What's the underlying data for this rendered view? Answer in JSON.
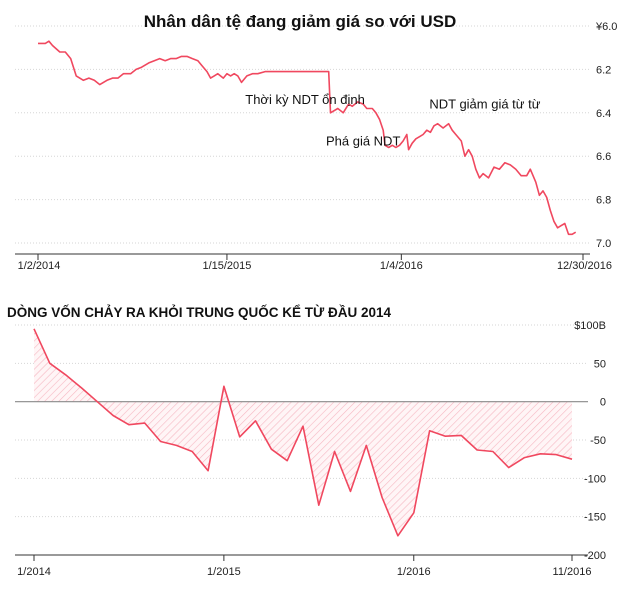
{
  "colors": {
    "line": "#f0485f",
    "grid": "#d6d6d6",
    "zero": "#8a8a8a",
    "fill": "#f9c6cf",
    "axis": "#333333"
  },
  "chart_data": [
    {
      "type": "line",
      "title": "Nhân dân tệ đang giảm giá so với USD",
      "y_inverted": true,
      "ylim": [
        6.0,
        7.0
      ],
      "y_ticks": [
        "¥6.0",
        "6.2",
        "6.4",
        "6.6",
        "6.8",
        "7.0"
      ],
      "y_tick_values": [
        6.0,
        6.2,
        6.4,
        6.6,
        6.8,
        7.0
      ],
      "x_ticks": [
        {
          "label": "1/2/2014",
          "t": 0
        },
        {
          "label": "1/15/2015",
          "t": 1.04
        },
        {
          "label": "1/4/2016",
          "t": 2.0
        },
        {
          "label": "12/30/2016",
          "t": 3.0
        }
      ],
      "annotations": [
        {
          "text": "Thời kỳ NDT ổn định",
          "t": 1.47,
          "y": 6.36
        },
        {
          "text": "Phá giá NDT",
          "t": 1.79,
          "y": 6.55
        },
        {
          "text": "NDT giảm giá từ từ",
          "t": 2.46,
          "y": 6.38
        }
      ],
      "series": [
        {
          "points": [
            [
              0.0,
              6.08
            ],
            [
              0.04,
              6.08
            ],
            [
              0.06,
              6.07
            ],
            [
              0.08,
              6.09
            ],
            [
              0.12,
              6.12
            ],
            [
              0.15,
              6.12
            ],
            [
              0.18,
              6.15
            ],
            [
              0.21,
              6.23
            ],
            [
              0.25,
              6.25
            ],
            [
              0.28,
              6.24
            ],
            [
              0.31,
              6.25
            ],
            [
              0.34,
              6.27
            ],
            [
              0.36,
              6.26
            ],
            [
              0.38,
              6.25
            ],
            [
              0.41,
              6.24
            ],
            [
              0.44,
              6.24
            ],
            [
              0.47,
              6.22
            ],
            [
              0.51,
              6.22
            ],
            [
              0.54,
              6.2
            ],
            [
              0.57,
              6.19
            ],
            [
              0.61,
              6.17
            ],
            [
              0.64,
              6.16
            ],
            [
              0.67,
              6.15
            ],
            [
              0.7,
              6.16
            ],
            [
              0.73,
              6.15
            ],
            [
              0.76,
              6.15
            ],
            [
              0.79,
              6.14
            ],
            [
              0.82,
              6.14
            ],
            [
              0.85,
              6.15
            ],
            [
              0.88,
              6.16
            ],
            [
              0.9,
              6.18
            ],
            [
              0.93,
              6.21
            ],
            [
              0.95,
              6.24
            ],
            [
              0.97,
              6.23
            ],
            [
              0.99,
              6.22
            ],
            [
              1.02,
              6.24
            ],
            [
              1.04,
              6.22
            ],
            [
              1.06,
              6.23
            ],
            [
              1.08,
              6.22
            ],
            [
              1.1,
              6.23
            ],
            [
              1.12,
              6.26
            ],
            [
              1.15,
              6.23
            ],
            [
              1.18,
              6.22
            ],
            [
              1.21,
              6.22
            ],
            [
              1.25,
              6.21
            ],
            [
              1.3,
              6.21
            ],
            [
              1.35,
              6.21
            ],
            [
              1.4,
              6.21
            ],
            [
              1.45,
              6.21
            ],
            [
              1.5,
              6.21
            ],
            [
              1.55,
              6.21
            ],
            [
              1.6,
              6.21
            ],
            [
              1.61,
              6.4
            ],
            [
              1.65,
              6.38
            ],
            [
              1.68,
              6.4
            ],
            [
              1.71,
              6.36
            ],
            [
              1.73,
              6.37
            ],
            [
              1.76,
              6.35
            ],
            [
              1.79,
              6.36
            ],
            [
              1.81,
              6.38
            ],
            [
              1.84,
              6.38
            ],
            [
              1.86,
              6.4
            ],
            [
              1.88,
              6.43
            ],
            [
              1.9,
              6.48
            ],
            [
              1.91,
              6.55
            ],
            [
              1.93,
              6.56
            ],
            [
              1.95,
              6.55
            ],
            [
              1.97,
              6.56
            ],
            [
              1.99,
              6.55
            ],
            [
              2.01,
              6.53
            ],
            [
              2.03,
              6.5
            ],
            [
              2.04,
              6.57
            ],
            [
              2.06,
              6.54
            ],
            [
              2.08,
              6.52
            ],
            [
              2.1,
              6.51
            ],
            [
              2.12,
              6.5
            ],
            [
              2.14,
              6.48
            ],
            [
              2.16,
              6.49
            ],
            [
              2.18,
              6.46
            ],
            [
              2.2,
              6.45
            ],
            [
              2.23,
              6.47
            ],
            [
              2.26,
              6.45
            ],
            [
              2.28,
              6.48
            ],
            [
              2.3,
              6.5
            ],
            [
              2.33,
              6.53
            ],
            [
              2.35,
              6.6
            ],
            [
              2.37,
              6.57
            ],
            [
              2.39,
              6.6
            ],
            [
              2.41,
              6.66
            ],
            [
              2.43,
              6.7
            ],
            [
              2.45,
              6.68
            ],
            [
              2.48,
              6.7
            ],
            [
              2.51,
              6.65
            ],
            [
              2.54,
              6.66
            ],
            [
              2.57,
              6.63
            ],
            [
              2.6,
              6.64
            ],
            [
              2.63,
              6.66
            ],
            [
              2.66,
              6.69
            ],
            [
              2.69,
              6.69
            ],
            [
              2.71,
              6.66
            ],
            [
              2.74,
              6.72
            ],
            [
              2.76,
              6.78
            ],
            [
              2.78,
              6.76
            ],
            [
              2.8,
              6.79
            ],
            [
              2.82,
              6.85
            ],
            [
              2.84,
              6.9
            ],
            [
              2.86,
              6.93
            ],
            [
              2.88,
              6.92
            ],
            [
              2.9,
              6.91
            ],
            [
              2.92,
              6.96
            ],
            [
              2.94,
              6.96
            ],
            [
              2.96,
              6.95
            ]
          ]
        }
      ]
    },
    {
      "type": "area",
      "title": "DÒNG VỐN CHẢY RA KHỎI TRUNG QUỐC KỂ TỪ ĐẦU 2014",
      "ylim": [
        -200,
        100
      ],
      "y_ticks": [
        "$100B",
        "50",
        "0",
        "-50",
        "-100",
        "-150",
        "-200"
      ],
      "y_tick_values": [
        100,
        50,
        0,
        -50,
        -100,
        -150,
        -200
      ],
      "x_ticks": [
        {
          "label": "1/2014",
          "m": 0
        },
        {
          "label": "1/2015",
          "m": 12
        },
        {
          "label": "1/2016",
          "m": 24
        },
        {
          "label": "11/2016",
          "m": 34
        }
      ],
      "series": [
        {
          "points": [
            [
              0,
              95
            ],
            [
              1,
              50
            ],
            [
              2,
              35
            ],
            [
              3,
              18
            ],
            [
              4,
              0
            ],
            [
              5,
              -18
            ],
            [
              6,
              -30
            ],
            [
              7,
              -28
            ],
            [
              8,
              -52
            ],
            [
              9,
              -57
            ],
            [
              10,
              -65
            ],
            [
              11,
              -90
            ],
            [
              12,
              20
            ],
            [
              13,
              -46
            ],
            [
              14,
              -25
            ],
            [
              15,
              -62
            ],
            [
              16,
              -77
            ],
            [
              17,
              -32
            ],
            [
              18,
              -135
            ],
            [
              19,
              -65
            ],
            [
              20,
              -117
            ],
            [
              21,
              -57
            ],
            [
              22,
              -125
            ],
            [
              23,
              -175
            ],
            [
              24,
              -145
            ],
            [
              25,
              -38
            ],
            [
              26,
              -45
            ],
            [
              27,
              -44
            ],
            [
              28,
              -63
            ],
            [
              29,
              -65
            ],
            [
              30,
              -86
            ],
            [
              31,
              -73
            ],
            [
              32,
              -68
            ],
            [
              33,
              -69
            ],
            [
              34,
              -75
            ]
          ]
        }
      ]
    }
  ]
}
